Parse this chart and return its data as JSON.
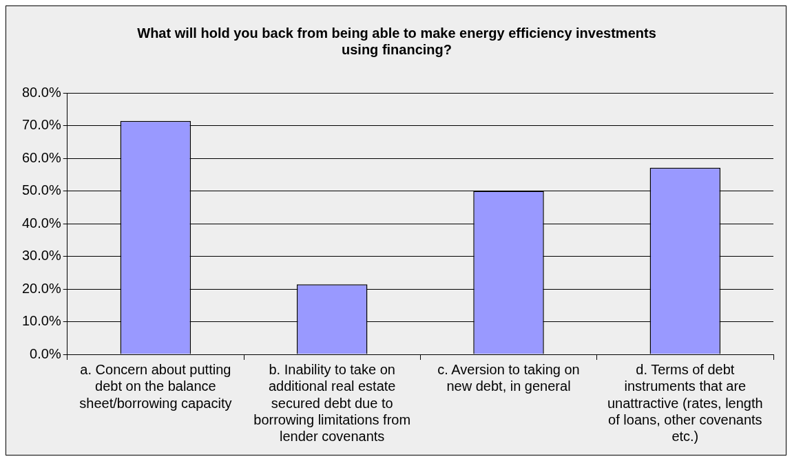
{
  "chart_data": {
    "type": "bar",
    "title": "What will hold you back from being able to make energy efficiency investments using financing?",
    "categories": [
      "a. Concern about putting debt on the balance sheet/borrowing capacity",
      "b. Inability to take on additional real estate secured debt due to borrowing limitations from lender covenants",
      "c. Aversion to taking on new debt, in general",
      "d. Terms of debt instruments that are unattractive (rates, length of loans, other covenants etc.)"
    ],
    "values": [
      71.4,
      21.4,
      50.0,
      57.1
    ],
    "color": "#9999ff",
    "ylim": [
      0,
      80
    ],
    "yticks": [
      {
        "value": 0,
        "label": "0.0%"
      },
      {
        "value": 10,
        "label": "10.0%"
      },
      {
        "value": 20,
        "label": "20.0%"
      },
      {
        "value": 30,
        "label": "30.0%"
      },
      {
        "value": 40,
        "label": "40.0%"
      },
      {
        "value": 50,
        "label": "50.0%"
      },
      {
        "value": 60,
        "label": "60.0%"
      },
      {
        "value": 70,
        "label": "70.0%"
      },
      {
        "value": 80,
        "label": "80.0%"
      }
    ],
    "grid": "y",
    "legend": false
  }
}
